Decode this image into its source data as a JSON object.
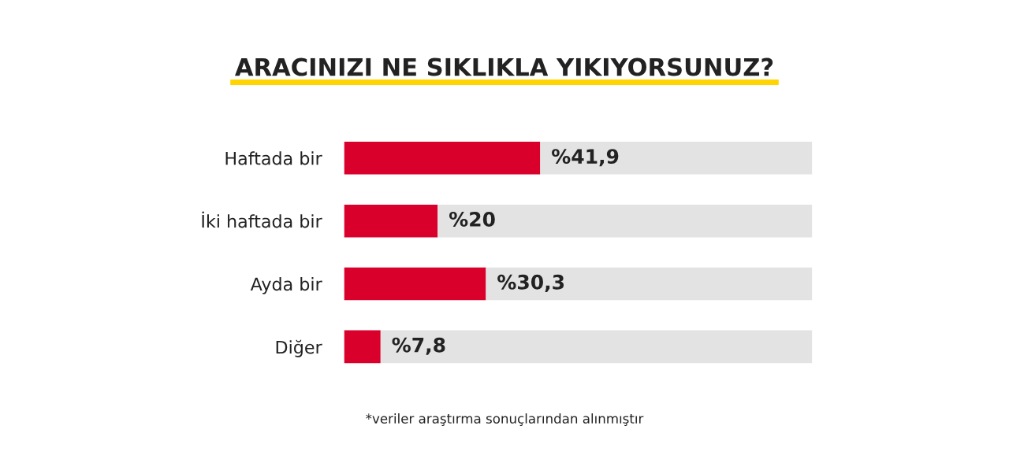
{
  "chart_data": {
    "type": "bar",
    "orientation": "horizontal",
    "stacked": true,
    "title": "ARACINIZI NE SIKLIKLA YIKIYORSUNUZ?",
    "categories": [
      "Haftada bir",
      "İki haftada bir",
      "Ayda bir",
      "Diğer"
    ],
    "series": [
      {
        "color": "#d9002c",
        "values": [
          41.9,
          20,
          30.3,
          7.8
        ],
        "value_labels": [
          "%41,9",
          "%20",
          "%30,3",
          "%7,8"
        ]
      },
      {
        "color": "#e3e3e3",
        "values": [
          58.1,
          80,
          69.7,
          92.2
        ]
      }
    ],
    "xlim": [
      0,
      100
    ],
    "tick_labels": "y",
    "grid": false,
    "legend": false,
    "annotations": [
      "*veriler araştırma sonuçlarından alınmıştır"
    ]
  }
}
